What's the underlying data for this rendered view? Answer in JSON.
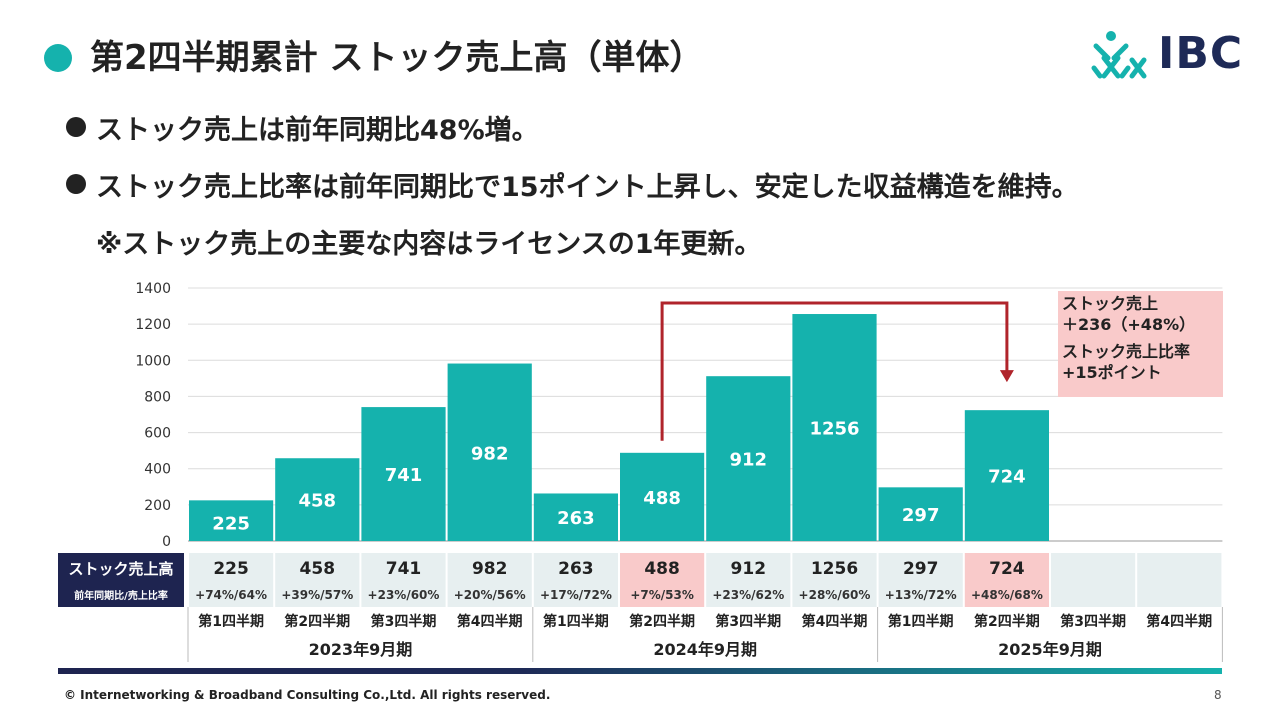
{
  "title": "第2四半期累計 ストック売上高（単体）",
  "logo_text": "IBC",
  "bullets": [
    "ストック売上は前年同期比48%増。",
    "ストック売上比率は前年同期比で15ポイント上昇し、安定した収益構造を維持。"
  ],
  "note": "※ストック売上の主要な内容はライセンスの1年更新。",
  "callout": {
    "line1": "ストック売上",
    "line2": "＋236（+48%）",
    "line3": "ストック売上比率",
    "line4": "+15ポイント"
  },
  "table": {
    "row1_label": "ストック売上高",
    "row2_label": "前年同期比/売上比率",
    "ratios": [
      "+74%/64%",
      "+39%/57%",
      "+23%/60%",
      "+20%/56%",
      "+17%/72%",
      "+7%/53%",
      "+23%/62%",
      "+28%/60%",
      "+13%/72%",
      "+48%/68%",
      "",
      ""
    ]
  },
  "quarters": [
    "第1四半期",
    "第2四半期",
    "第3四半期",
    "第4四半期",
    "第1四半期",
    "第2四半期",
    "第3四半期",
    "第4四半期",
    "第1四半期",
    "第2四半期",
    "第3四半期",
    "第4四半期"
  ],
  "fiscal_years": [
    "2023年9月期",
    "2024年9月期",
    "2025年9月期"
  ],
  "footer": "© Internetworking & Broadband Consulting Co.,Ltd. All rights reserved.",
  "page_number": "8",
  "colors": {
    "accent": "#15b2ad",
    "highlight": "#f9caca",
    "arrow": "#b0242b",
    "table_bg": "#e7eff0",
    "label_bg": "#1e2450"
  },
  "chart_data": {
    "type": "bar",
    "categories": [
      "第1四半期",
      "第2四半期",
      "第3四半期",
      "第4四半期",
      "第1四半期",
      "第2四半期",
      "第3四半期",
      "第4四半期",
      "第1四半期",
      "第2四半期",
      "第3四半期",
      "第4四半期"
    ],
    "values": [
      225,
      458,
      741,
      982,
      263,
      488,
      912,
      1256,
      297,
      724,
      null,
      null
    ],
    "ylim": [
      0,
      1400
    ],
    "yticks": [
      0,
      200,
      400,
      600,
      800,
      1000,
      1200,
      1400
    ],
    "grid": true,
    "highlight_indices": [
      5,
      9
    ]
  }
}
